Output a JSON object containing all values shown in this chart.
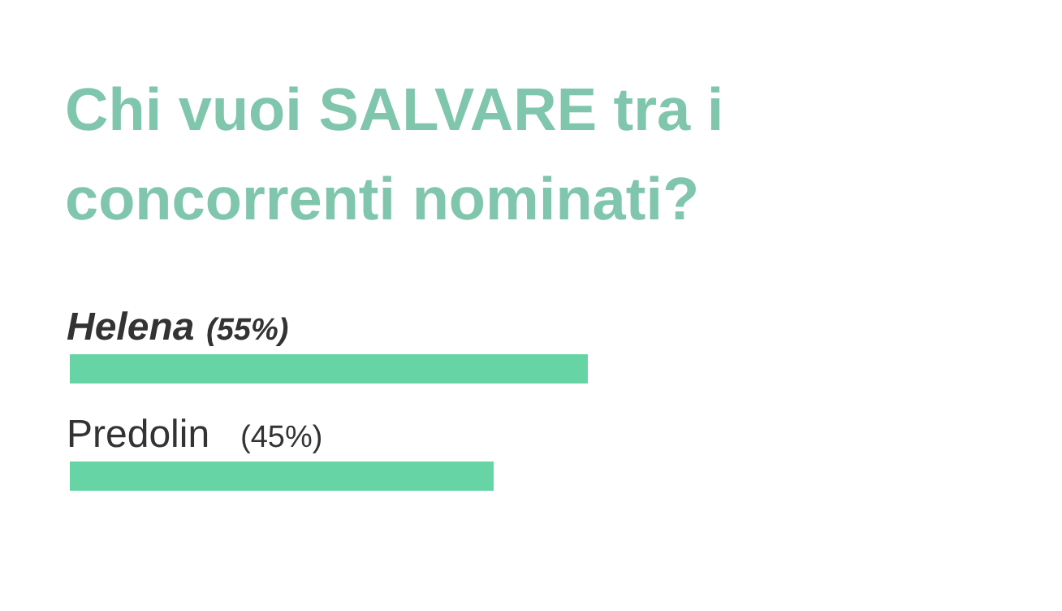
{
  "chart_data": {
    "type": "bar",
    "orientation": "horizontal",
    "title": "Chi vuoi SALVARE tra i concorrenti nominati?",
    "categories": [
      "Helena",
      "Predolin"
    ],
    "values": [
      55,
      45
    ],
    "value_labels": [
      "(55%)",
      "(45%)"
    ],
    "colors": [
      "#66d4a4",
      "#66d4a4"
    ]
  }
}
